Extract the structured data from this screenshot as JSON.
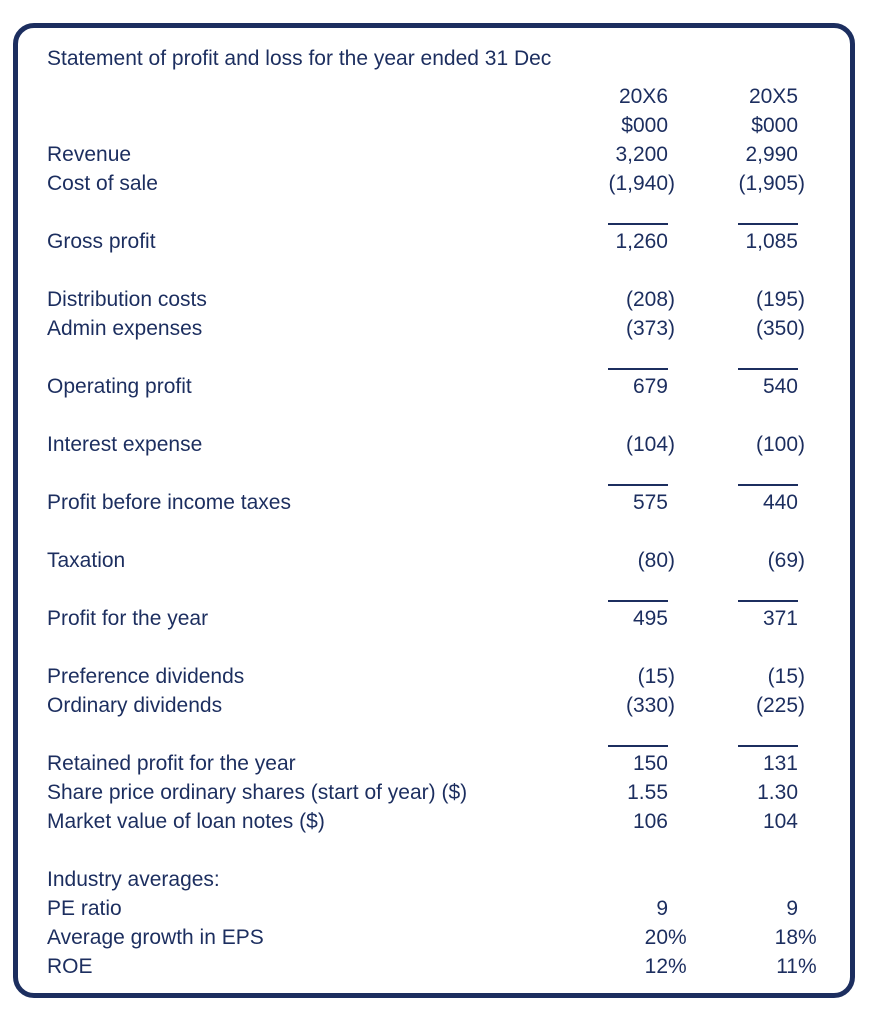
{
  "title": "Statement of profit and loss for the year ended 31 Dec",
  "colors": {
    "ink": "#1c2e5f",
    "background": "#ffffff"
  },
  "columns": {
    "years": [
      "20X6",
      "20X5"
    ],
    "units": [
      "$000",
      "$000"
    ]
  },
  "rows": [
    {
      "label": "Revenue",
      "values": [
        "3,200",
        "2,990"
      ]
    },
    {
      "label": "Cost of sale",
      "values": [
        "(1,940)",
        "(1,905)"
      ]
    },
    {
      "rule": true
    },
    {
      "label": "Gross profit",
      "values": [
        "1,260",
        "1,085"
      ]
    },
    {
      "blank": true
    },
    {
      "label": "Distribution costs",
      "values": [
        "(208)",
        "(195)"
      ]
    },
    {
      "label": "Admin expenses",
      "values": [
        "(373)",
        "(350)"
      ]
    },
    {
      "rule": true
    },
    {
      "label": "Operating profit",
      "values": [
        "679",
        "540"
      ]
    },
    {
      "blank": true
    },
    {
      "label": "Interest expense",
      "values": [
        "(104)",
        "(100)"
      ]
    },
    {
      "rule": true
    },
    {
      "label": "Profit before income taxes",
      "values": [
        "575",
        "440"
      ]
    },
    {
      "blank": true
    },
    {
      "label": "Taxation",
      "values": [
        "(80)",
        "(69)"
      ]
    },
    {
      "rule": true
    },
    {
      "label": "Profit for the year",
      "values": [
        "495",
        "371"
      ]
    },
    {
      "blank": true
    },
    {
      "label": "Preference dividends",
      "values": [
        "(15)",
        "(15)"
      ]
    },
    {
      "label": "Ordinary dividends",
      "values": [
        "(330)",
        "(225)"
      ]
    },
    {
      "rule": true
    },
    {
      "label": "Retained profit for the year",
      "values": [
        "150",
        "131"
      ]
    },
    {
      "label": "Share price ordinary shares (start of year) ($)",
      "values": [
        "1.55",
        "1.30"
      ]
    },
    {
      "label": "Market value of loan notes ($)",
      "values": [
        "106",
        "104"
      ]
    },
    {
      "blank": true
    },
    {
      "label": "Industry averages:",
      "values": [
        "",
        ""
      ]
    },
    {
      "label": "PE ratio",
      "values": [
        "9",
        "9"
      ]
    },
    {
      "label": "Average growth in EPS",
      "values": [
        "20%",
        "18%"
      ]
    },
    {
      "label": "ROE",
      "values": [
        "12%",
        "11%"
      ]
    }
  ]
}
